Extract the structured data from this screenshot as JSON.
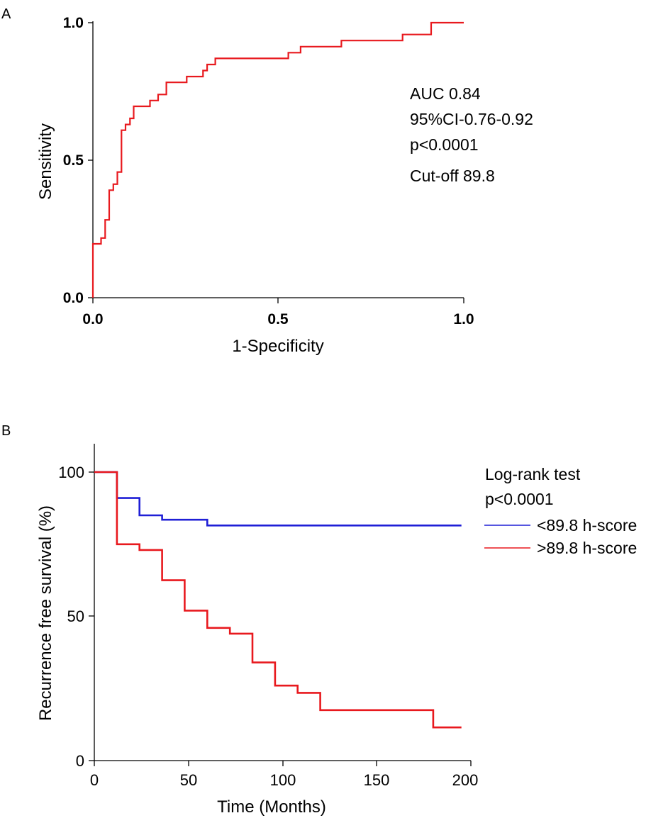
{
  "chart_data": [
    {
      "panel": "A",
      "type": "line",
      "title": "",
      "xlabel": "1-Specificity",
      "ylabel": "Sensitivity",
      "xlim": [
        0,
        1
      ],
      "ylim": [
        0,
        1
      ],
      "xticks": [
        "0.0",
        "0.5",
        "1.0"
      ],
      "yticks": [
        "0.0",
        "0.5",
        "1.0"
      ],
      "annotations": [
        "AUC 0.84",
        "95%CI-0.76-0.92",
        "p<0.0001",
        "Cut-off 89.8"
      ],
      "series": [
        {
          "name": "ROC",
          "color": "#e8191e",
          "x": [
            0,
            0,
            0.022,
            0.022,
            0.033,
            0.033,
            0.044,
            0.044,
            0.055,
            0.055,
            0.066,
            0.066,
            0.077,
            0.077,
            0.088,
            0.088,
            0.1,
            0.1,
            0.11,
            0.11,
            0.121,
            0.121,
            0.154,
            0.154,
            0.165,
            0.165,
            0.176,
            0.176,
            0.198,
            0.198,
            0.22,
            0.22,
            0.253,
            0.253,
            0.297,
            0.297,
            0.308,
            0.308,
            0.33,
            0.33,
            0.352,
            0.352,
            0.527,
            0.527,
            0.56,
            0.56,
            0.67,
            0.67,
            0.835,
            0.835,
            0.912,
            0.912,
            1.0
          ],
          "y": [
            0,
            0.196,
            0.196,
            0.217,
            0.217,
            0.283,
            0.283,
            0.391,
            0.391,
            0.413,
            0.413,
            0.457,
            0.457,
            0.609,
            0.609,
            0.63,
            0.63,
            0.652,
            0.652,
            0.696,
            0.696,
            0.696,
            0.696,
            0.717,
            0.717,
            0.717,
            0.717,
            0.739,
            0.739,
            0.783,
            0.783,
            0.783,
            0.783,
            0.804,
            0.804,
            0.826,
            0.826,
            0.848,
            0.848,
            0.87,
            0.87,
            0.87,
            0.87,
            0.891,
            0.891,
            0.913,
            0.913,
            0.935,
            0.935,
            0.957,
            0.957,
            1.0,
            1.0
          ]
        }
      ]
    },
    {
      "panel": "B",
      "type": "line",
      "title": "",
      "xlabel": "Time (Months)",
      "ylabel": "Recurrence free survival (%)",
      "xlim": [
        0,
        200
      ],
      "ylim": [
        0,
        110
      ],
      "xticks": [
        "0",
        "50",
        "100",
        "150",
        "200"
      ],
      "yticks": [
        "0",
        "50",
        "100"
      ],
      "legend_title": [
        "Log-rank test",
        "p<0.0001"
      ],
      "legend_position": "right",
      "series": [
        {
          "name": "<89.8 h-score",
          "color": "#1f1fd6",
          "x": [
            0,
            12,
            12,
            24,
            24,
            36,
            36,
            60,
            60,
            195
          ],
          "y": [
            100,
            100,
            91,
            91,
            85,
            85,
            83.5,
            83.5,
            81.5,
            81.5
          ]
        },
        {
          "name": ">89.8 h-score",
          "color": "#e8191e",
          "x": [
            0,
            12,
            12,
            24,
            24,
            36,
            36,
            48,
            48,
            60,
            60,
            72,
            72,
            84,
            84,
            96,
            96,
            108,
            108,
            120,
            120,
            180,
            180,
            195
          ],
          "y": [
            100,
            100,
            75,
            75,
            73,
            73,
            62.5,
            62.5,
            52,
            52,
            46,
            46,
            44,
            44,
            34,
            34,
            26,
            26,
            23.5,
            23.5,
            17.5,
            17.5,
            11.5,
            11.5
          ]
        }
      ]
    }
  ],
  "panel_labels": {
    "a": "A",
    "b": "B"
  }
}
